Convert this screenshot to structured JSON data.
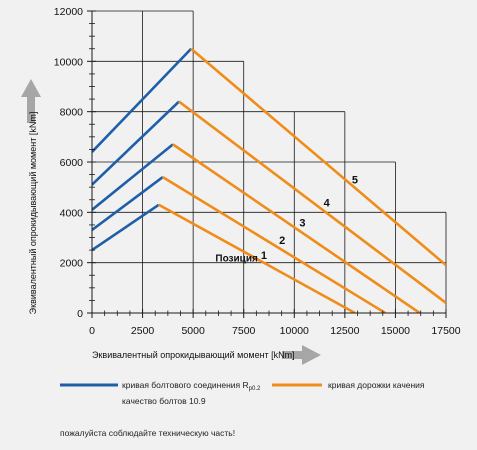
{
  "colors": {
    "background": "#f1f1f1",
    "bolt": "#1f5fa8",
    "raceway": "#f08c1a",
    "grid": "#1a1a1a",
    "axis_arrow": "#a6a6a6"
  },
  "chart_data": {
    "type": "line",
    "xlabel": "Эквивалентный опрокидывающий момент [kNm]",
    "ylabel": "Эквивалентный опрокидывающий момент [kNm]",
    "xlim": [
      0,
      17500
    ],
    "ylim": [
      0,
      12000
    ],
    "x_ticks": [
      0,
      2500,
      5000,
      7500,
      10000,
      12500,
      15000,
      17500
    ],
    "y_ticks": [
      0,
      2000,
      4000,
      6000,
      8000,
      10000,
      12000
    ],
    "x_tick_labels": [
      "0",
      "2500",
      "5000",
      "7500",
      "10000",
      "12500",
      "15000",
      "17500"
    ],
    "y_tick_labels": [
      "0",
      "2000",
      "4000",
      "6000",
      "8000",
      "10000",
      "12000"
    ],
    "grid": true,
    "series": [
      {
        "group": "bolt",
        "position": "1",
        "points": [
          [
            0,
            2500
          ],
          [
            3300,
            4300
          ]
        ]
      },
      {
        "group": "bolt",
        "position": "2",
        "points": [
          [
            0,
            3300
          ],
          [
            3500,
            5400
          ]
        ]
      },
      {
        "group": "bolt",
        "position": "3",
        "points": [
          [
            0,
            4100
          ],
          [
            4000,
            6700
          ]
        ]
      },
      {
        "group": "bolt",
        "position": "4",
        "points": [
          [
            0,
            5100
          ],
          [
            4300,
            8400
          ]
        ]
      },
      {
        "group": "bolt",
        "position": "5",
        "points": [
          [
            0,
            6400
          ],
          [
            4900,
            10500
          ]
        ]
      },
      {
        "group": "raceway",
        "position": "1",
        "points": [
          [
            3300,
            4300
          ],
          [
            13000,
            0
          ]
        ]
      },
      {
        "group": "raceway",
        "position": "2",
        "points": [
          [
            3500,
            5400
          ],
          [
            14500,
            0
          ]
        ]
      },
      {
        "group": "raceway",
        "position": "3",
        "points": [
          [
            4000,
            6700
          ],
          [
            16200,
            0
          ]
        ]
      },
      {
        "group": "raceway",
        "position": "4",
        "points": [
          [
            4300,
            8400
          ],
          [
            17500,
            400
          ]
        ]
      },
      {
        "group": "raceway",
        "position": "5",
        "points": [
          [
            4900,
            10500
          ],
          [
            17500,
            1900
          ]
        ]
      }
    ],
    "position_caption": "Позиция",
    "position_labels": [
      {
        "text": "1",
        "x": 8500,
        "y": 2300
      },
      {
        "text": "2",
        "x": 9400,
        "y": 2900
      },
      {
        "text": "3",
        "x": 10400,
        "y": 3600
      },
      {
        "text": "4",
        "x": 11600,
        "y": 4400
      },
      {
        "text": "5",
        "x": 13000,
        "y": 5300
      }
    ],
    "position_caption_point": {
      "x": 6100,
      "y": 2200
    },
    "legend": [
      {
        "label": "кривая болтового соединения R",
        "subscript": "p0.2",
        "label_line2": "качество болтов 10.9",
        "color": "#1f5fa8"
      },
      {
        "label": "кривая дорожки качения",
        "color": "#f08c1a"
      }
    ],
    "legend_position": "bottom",
    "footnote": "пожалуйста соблюдайте техническую часть!"
  }
}
